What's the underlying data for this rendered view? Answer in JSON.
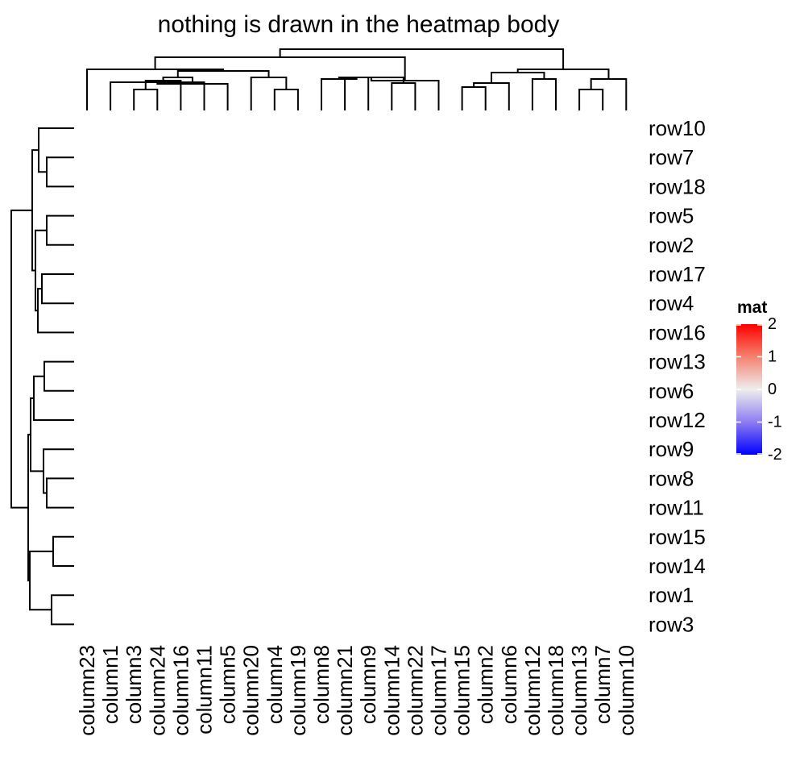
{
  "chart_data": {
    "type": "heatmap",
    "title": "nothing is drawn in the heatmap body",
    "row_labels": [
      "row10",
      "row7",
      "row18",
      "row5",
      "row2",
      "row17",
      "row4",
      "row16",
      "row13",
      "row6",
      "row12",
      "row9",
      "row8",
      "row11",
      "row15",
      "row14",
      "row1",
      "row3"
    ],
    "column_labels": [
      "column23",
      "column1",
      "column3",
      "column24",
      "column16",
      "column11",
      "column5",
      "column20",
      "column4",
      "column19",
      "column8",
      "column21",
      "column9",
      "column14",
      "column22",
      "column17",
      "column15",
      "column2",
      "column6",
      "column12",
      "column18",
      "column13",
      "column7",
      "column10"
    ],
    "body_drawn": false,
    "row_dendrogram": "left",
    "column_dendrogram": "top",
    "legend": {
      "title": "mat",
      "ticks": [
        2,
        1,
        0,
        -1,
        -2
      ],
      "range": [
        -2,
        2
      ],
      "colors": {
        "low": "#0000ff",
        "mid": "#eeeeee",
        "high": "#ff0000"
      },
      "placement": "right"
    }
  }
}
